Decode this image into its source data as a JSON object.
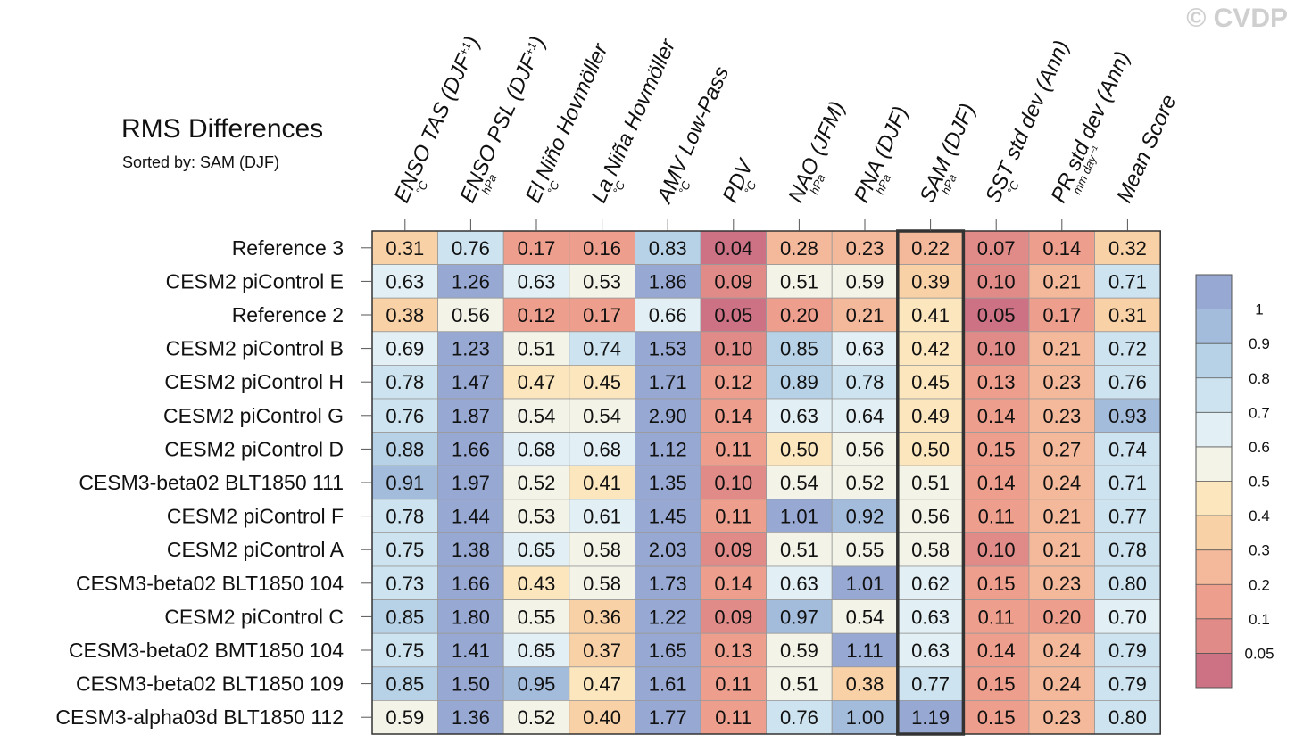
{
  "watermark": "© CVDP",
  "chart_data": {
    "type": "heatmap",
    "title": "RMS Differences",
    "subtitle": "Sorted by: SAM (DJF)",
    "sorted_by": "SAM (DJF)",
    "columns": [
      {
        "name": "ENSO TAS (DJF",
        "sup": "+1",
        "close": ")",
        "unit": "°C"
      },
      {
        "name": "ENSO PSL (DJF",
        "sup": "+1",
        "close": ")",
        "unit": "hPa"
      },
      {
        "name": "El Niño Hovmöller",
        "sup": "",
        "close": "",
        "unit": "°C"
      },
      {
        "name": "La Niña Hovmöller",
        "sup": "",
        "close": "",
        "unit": "°C"
      },
      {
        "name": "AMV Low-Pass",
        "sup": "",
        "close": "",
        "unit": "°C"
      },
      {
        "name": "PDV",
        "sup": "",
        "close": "",
        "unit": "°C"
      },
      {
        "name": "NAO (JFM)",
        "sup": "",
        "close": "",
        "unit": "hPa"
      },
      {
        "name": "PNA (DJF)",
        "sup": "",
        "close": "",
        "unit": "hPa"
      },
      {
        "name": "SAM (DJF)",
        "sup": "",
        "close": "",
        "unit": "hPa"
      },
      {
        "name": "SST std dev (Ann)",
        "sup": "",
        "close": "",
        "unit": "°C"
      },
      {
        "name": "PR std dev (Ann)",
        "sup": "",
        "close": "",
        "unit": "mm day⁻¹"
      },
      {
        "name": "Mean Score",
        "sup": "",
        "close": "",
        "unit": ""
      }
    ],
    "rows": [
      {
        "label": "Reference 3",
        "values": [
          0.31,
          0.76,
          0.17,
          0.16,
          0.83,
          0.04,
          0.28,
          0.23,
          0.22,
          0.07,
          0.14,
          0.32
        ]
      },
      {
        "label": "CESM2 piControl E",
        "values": [
          0.63,
          1.26,
          0.63,
          0.53,
          1.86,
          0.09,
          0.51,
          0.59,
          0.39,
          0.1,
          0.21,
          0.71
        ]
      },
      {
        "label": "Reference 2",
        "values": [
          0.38,
          0.56,
          0.12,
          0.17,
          0.66,
          0.05,
          0.2,
          0.21,
          0.41,
          0.05,
          0.17,
          0.31
        ]
      },
      {
        "label": "CESM2 piControl B",
        "values": [
          0.69,
          1.23,
          0.51,
          0.74,
          1.53,
          0.1,
          0.85,
          0.63,
          0.42,
          0.1,
          0.21,
          0.72
        ]
      },
      {
        "label": "CESM2 piControl H",
        "values": [
          0.78,
          1.47,
          0.47,
          0.45,
          1.71,
          0.12,
          0.89,
          0.78,
          0.45,
          0.13,
          0.23,
          0.76
        ]
      },
      {
        "label": "CESM2 piControl G",
        "values": [
          0.76,
          1.87,
          0.54,
          0.54,
          2.9,
          0.14,
          0.63,
          0.64,
          0.49,
          0.14,
          0.23,
          0.93
        ]
      },
      {
        "label": "CESM2 piControl D",
        "values": [
          0.88,
          1.66,
          0.68,
          0.68,
          1.12,
          0.11,
          0.5,
          0.56,
          0.5,
          0.15,
          0.27,
          0.74
        ]
      },
      {
        "label": "CESM3-beta02 BLT1850 111",
        "values": [
          0.91,
          1.97,
          0.52,
          0.41,
          1.35,
          0.1,
          0.54,
          0.52,
          0.51,
          0.14,
          0.24,
          0.71
        ]
      },
      {
        "label": "CESM2 piControl F",
        "values": [
          0.78,
          1.44,
          0.53,
          0.61,
          1.45,
          0.11,
          1.01,
          0.92,
          0.56,
          0.11,
          0.21,
          0.77
        ]
      },
      {
        "label": "CESM2 piControl A",
        "values": [
          0.75,
          1.38,
          0.65,
          0.58,
          2.03,
          0.09,
          0.51,
          0.55,
          0.58,
          0.1,
          0.21,
          0.78
        ]
      },
      {
        "label": "CESM3-beta02 BLT1850 104",
        "values": [
          0.73,
          1.66,
          0.43,
          0.58,
          1.73,
          0.14,
          0.63,
          1.01,
          0.62,
          0.15,
          0.23,
          0.8
        ]
      },
      {
        "label": "CESM2 piControl C",
        "values": [
          0.85,
          1.8,
          0.55,
          0.36,
          1.22,
          0.09,
          0.97,
          0.54,
          0.63,
          0.11,
          0.2,
          0.7
        ]
      },
      {
        "label": "CESM3-beta02 BMT1850 104",
        "values": [
          0.75,
          1.41,
          0.65,
          0.37,
          1.65,
          0.13,
          0.59,
          1.11,
          0.63,
          0.14,
          0.24,
          0.79
        ]
      },
      {
        "label": "CESM3-beta02 BLT1850 109",
        "values": [
          0.85,
          1.5,
          0.95,
          0.47,
          1.61,
          0.11,
          0.51,
          0.38,
          0.77,
          0.15,
          0.24,
          0.79
        ]
      },
      {
        "label": "CESM3-alpha03d BLT1850 112",
        "values": [
          0.59,
          1.36,
          0.52,
          0.4,
          1.77,
          0.11,
          0.76,
          1.0,
          1.19,
          0.15,
          0.23,
          0.8
        ]
      }
    ],
    "colorbar": {
      "levels": [
        0.05,
        0.1,
        0.2,
        0.3,
        0.4,
        0.5,
        0.6,
        0.7,
        0.8,
        0.9,
        1
      ],
      "labels": [
        "0.05",
        "0.1",
        "0.2",
        "0.3",
        "0.4",
        "0.5",
        "0.6",
        "0.7",
        "0.8",
        "0.9",
        "1"
      ],
      "colors": [
        "#cd7284",
        "#e18b88",
        "#ee9e8c",
        "#f4b89a",
        "#f9d1a6",
        "#fbe6bd",
        "#f3f3e8",
        "#e2eff4",
        "#cde3ef",
        "#b7d2e6",
        "#a4bcdc",
        "#97a8d2"
      ]
    }
  }
}
